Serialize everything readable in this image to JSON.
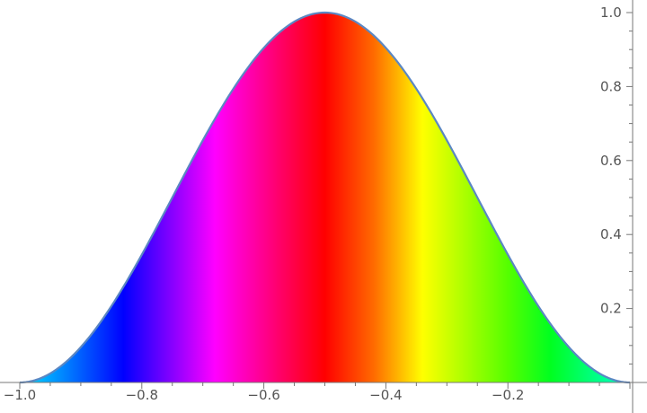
{
  "chart_data": {
    "type": "area",
    "title": "",
    "xlabel": "",
    "ylabel": "",
    "function": "sin(pi*x)^2 on [-1, 0]",
    "x": [
      -1.0,
      -0.95,
      -0.9,
      -0.85,
      -0.8,
      -0.75,
      -0.7,
      -0.65,
      -0.6,
      -0.55,
      -0.5,
      -0.45,
      -0.4,
      -0.35,
      -0.3,
      -0.25,
      -0.2,
      -0.15,
      -0.1,
      -0.05,
      0.0
    ],
    "series": [
      {
        "values": [
          0.0,
          0.0245,
          0.0955,
          0.2061,
          0.3455,
          0.5,
          0.6545,
          0.7939,
          0.9045,
          0.9755,
          1.0,
          0.9755,
          0.9045,
          0.7939,
          0.6545,
          0.5,
          0.3455,
          0.2061,
          0.0955,
          0.0245,
          0.0
        ],
        "line_color": "#5b87c3",
        "fill": "hue gradient along x (cyan → blue → magenta → red → orange → yellow → green → cyan)"
      }
    ],
    "fill_gradient_stops": [
      {
        "x": -1.0,
        "color": "#00e5ff"
      },
      {
        "x": -0.83,
        "color": "#0000ff"
      },
      {
        "x": -0.68,
        "color": "#ff00ff"
      },
      {
        "x": -0.5,
        "color": "#ff0000"
      },
      {
        "x": -0.42,
        "color": "#ff6a00"
      },
      {
        "x": -0.34,
        "color": "#ffff00"
      },
      {
        "x": -0.2,
        "color": "#55ff00"
      },
      {
        "x": -0.13,
        "color": "#00ff20"
      },
      {
        "x": 0.0,
        "color": "#00ffd2"
      }
    ],
    "x_ticks": [
      {
        "value": -1.0,
        "label": "−1.0"
      },
      {
        "value": -0.8,
        "label": "−0.8"
      },
      {
        "value": -0.6,
        "label": "−0.6"
      },
      {
        "value": -0.4,
        "label": "−0.4"
      },
      {
        "value": -0.2,
        "label": "−0.2"
      }
    ],
    "y_ticks": [
      {
        "value": 0.2,
        "label": "0.2"
      },
      {
        "value": 0.4,
        "label": "0.4"
      },
      {
        "value": 0.6,
        "label": "0.6"
      },
      {
        "value": 0.8,
        "label": "0.8"
      },
      {
        "value": 1.0,
        "label": "1.0"
      }
    ],
    "xlim": [
      -1.02,
      0.02
    ],
    "ylim": [
      0.0,
      1.0
    ],
    "y_axis_position": "right",
    "grid": false,
    "legend": "none"
  }
}
